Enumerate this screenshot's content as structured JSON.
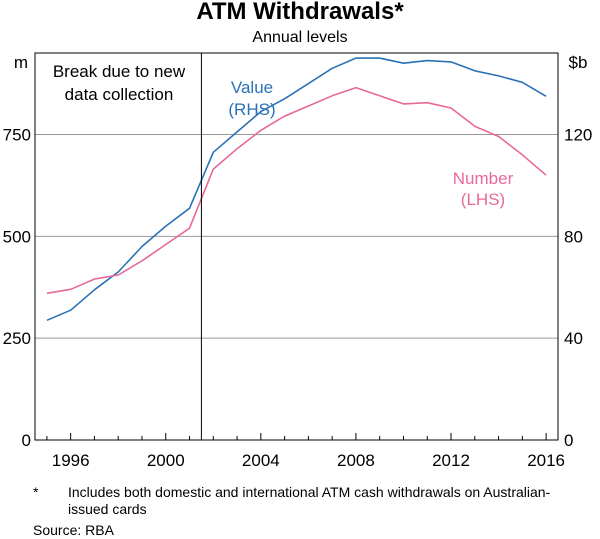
{
  "chart_data": {
    "type": "line",
    "title": "ATM Withdrawals*",
    "subtitle": "Annual levels",
    "y_left_unit": "m",
    "y_right_unit": "$b",
    "x_ticks": [
      "1996",
      "2000",
      "2004",
      "2008",
      "2012",
      "2016"
    ],
    "x_tick_values": [
      1996,
      2000,
      2004,
      2008,
      2012,
      2016
    ],
    "xlim": [
      1994.5,
      2016.5
    ],
    "y_left_ticks": [
      0,
      250,
      500,
      750
    ],
    "y_left_lim": [
      0,
      950
    ],
    "y_right_ticks": [
      0,
      40,
      80,
      120
    ],
    "y_right_lim": [
      0,
      152
    ],
    "grid": true,
    "break_x": 2001.5,
    "break_label": [
      "Break due to new",
      "data collection"
    ],
    "series": [
      {
        "name": "Value",
        "axis_note": "(RHS)",
        "axis": "right",
        "color": "#2a72b5",
        "x": [
          1995,
          1996,
          1997,
          1998,
          1999,
          2000,
          2001,
          2002,
          2003,
          2004,
          2005,
          2006,
          2007,
          2008,
          2009,
          2010,
          2011,
          2012,
          2013,
          2014,
          2015,
          2016
        ],
        "values": [
          47,
          51,
          59,
          66,
          76,
          84,
          91,
          113,
          121,
          129,
          134,
          140,
          146,
          150,
          150,
          148,
          149,
          148.5,
          145,
          143,
          140.5,
          135
        ]
      },
      {
        "name": "Number",
        "axis_note": "(LHS)",
        "axis": "left",
        "color": "#e8689a",
        "x": [
          1995,
          1996,
          1997,
          1998,
          1999,
          2000,
          2001,
          2002,
          2003,
          2004,
          2005,
          2006,
          2007,
          2008,
          2009,
          2010,
          2011,
          2012,
          2013,
          2014,
          2015,
          2016
        ],
        "values": [
          360,
          370,
          395,
          405,
          440,
          480,
          520,
          665,
          715,
          760,
          795,
          820,
          845,
          865,
          845,
          825,
          828,
          815,
          770,
          745,
          700,
          650
        ]
      }
    ]
  },
  "footnote": {
    "mark": "*",
    "text": "Includes both domestic and international ATM cash withdrawals on Australian-issued cards"
  },
  "source": "Source:   RBA"
}
